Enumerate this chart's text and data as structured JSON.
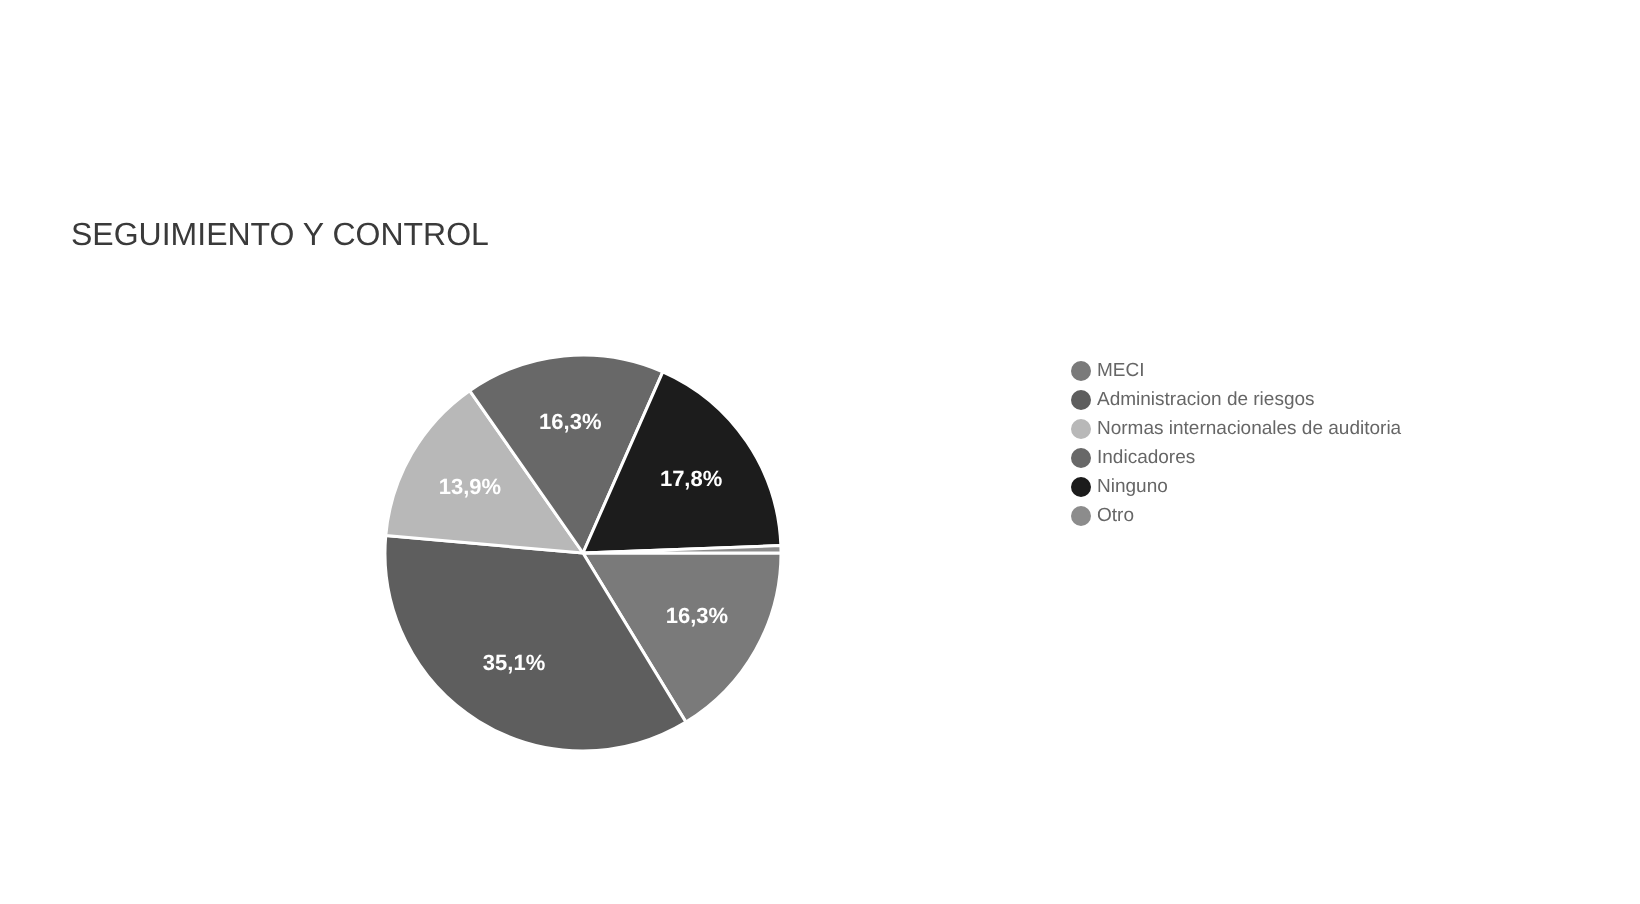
{
  "chart_data": {
    "type": "pie",
    "title": "SEGUIMIENTO Y CONTROL",
    "categories": [
      "MECI",
      "Administracion de riesgos",
      "Normas internacionales de auditoria",
      "Indicadores",
      "Ninguno",
      "Otro"
    ],
    "values": [
      16.3,
      35.1,
      13.9,
      16.3,
      17.8,
      0.6
    ],
    "colors": [
      "#7a7a7a",
      "#5e5e5e",
      "#b8b8b8",
      "#686868",
      "#1c1c1c",
      "#8c8c8c"
    ],
    "value_labels": [
      "16,3%",
      "35,1%",
      "13,9%",
      "16,3%",
      "17,8%",
      null
    ],
    "legend": "right"
  }
}
